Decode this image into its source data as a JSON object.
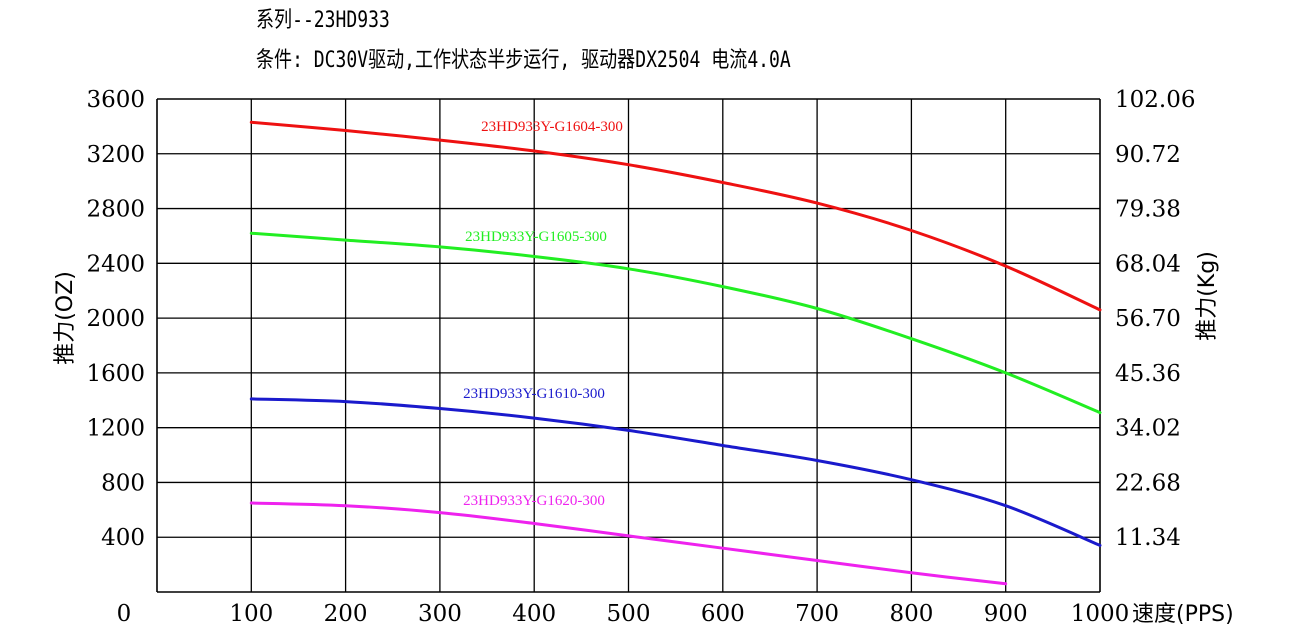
{
  "header": {
    "series_line": "系列--23HD933",
    "condition_line": "条件: DC30V驱动,工作状态半步运行, 驱动器DX2504 电流4.0A"
  },
  "chart_data": {
    "type": "line",
    "xlabel": "速度(PPS)",
    "ylabel_left": "推力(OZ)",
    "ylabel_right": "推力(Kg)",
    "xlim": [
      0,
      1000
    ],
    "ylim": [
      0,
      3600
    ],
    "x_ticks": [
      "0",
      "100",
      "200",
      "300",
      "400",
      "500",
      "600",
      "700",
      "800",
      "900",
      "1000"
    ],
    "x_tick_values": [
      0,
      100,
      200,
      300,
      400,
      500,
      600,
      700,
      800,
      900,
      1000
    ],
    "y_ticks_left": [
      "400",
      "800",
      "1200",
      "1600",
      "2000",
      "2400",
      "2800",
      "3200",
      "3600"
    ],
    "y_tick_values_left": [
      400,
      800,
      1200,
      1600,
      2000,
      2400,
      2800,
      3200,
      3600
    ],
    "y_ticks_right": [
      "11.34",
      "22.68",
      "34.02",
      "45.36",
      "56.70",
      "68.04",
      "79.38",
      "90.72",
      "102.06"
    ],
    "y_tick_values_right": [
      11.34,
      22.68,
      34.02,
      45.36,
      56.7,
      68.04,
      79.38,
      90.72,
      102.06
    ],
    "grid": true,
    "series": [
      {
        "name": "23HD933Y-G1604-300",
        "color": "#ee1111",
        "x": [
          100,
          200,
          300,
          400,
          500,
          600,
          700,
          800,
          900,
          1000
        ],
        "y": [
          3430,
          3370,
          3300,
          3220,
          3120,
          2990,
          2840,
          2640,
          2380,
          2060
        ]
      },
      {
        "name": "23HD933Y-G1605-300",
        "color": "#22ee22",
        "x": [
          100,
          200,
          300,
          400,
          500,
          600,
          700,
          800,
          900,
          1000
        ],
        "y": [
          2620,
          2570,
          2520,
          2450,
          2360,
          2230,
          2070,
          1850,
          1600,
          1310
        ]
      },
      {
        "name": "23HD933Y-G1610-300",
        "color": "#1a1acc",
        "x": [
          100,
          200,
          300,
          400,
          500,
          600,
          700,
          800,
          900,
          1000
        ],
        "y": [
          1410,
          1390,
          1340,
          1270,
          1180,
          1070,
          960,
          820,
          630,
          340
        ]
      },
      {
        "name": "23HD933Y-G1620-300",
        "color": "#ee22ee",
        "x": [
          100,
          200,
          300,
          400,
          500,
          600,
          700,
          800,
          900
        ],
        "y": [
          650,
          630,
          580,
          500,
          410,
          320,
          230,
          140,
          60
        ]
      }
    ]
  }
}
